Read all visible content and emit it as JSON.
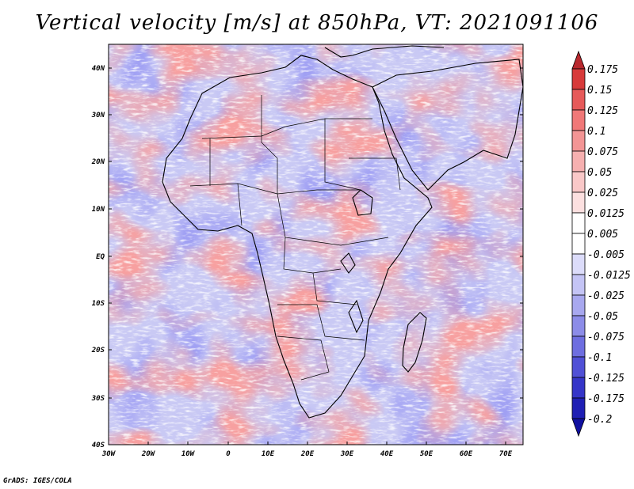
{
  "title": "Vertical velocity [m/s] at 850hPa, VT: 2021091106",
  "footer": "GrADS: IGES/COLA",
  "lat_labels": [
    "40N",
    "30N",
    "20N",
    "10N",
    "EQ",
    "10S",
    "20S",
    "30S",
    "40S"
  ],
  "lon_labels": [
    "30W",
    "20W",
    "10W",
    "0",
    "10E",
    "20E",
    "30E",
    "40E",
    "50E",
    "60E",
    "70E"
  ],
  "colorbar": {
    "labels": [
      "0.175",
      "0.15",
      "0.125",
      "0.1",
      "0.075",
      "0.05",
      "0.025",
      "0.0125",
      "0.005",
      "-0.005",
      "-0.0125",
      "-0.025",
      "-0.05",
      "-0.075",
      "-0.1",
      "-0.125",
      "-0.175",
      "-0.2"
    ],
    "colors": [
      "#b8282e",
      "#d73a3a",
      "#e65a5a",
      "#f07878",
      "#f39595",
      "#f6b0b0",
      "#f9c8c8",
      "#fce0e0",
      "#ffffff",
      "#ffffff",
      "#dcdcfa",
      "#c4c4f5",
      "#a8a8ef",
      "#8c8ce8",
      "#6e6ee0",
      "#5050d6",
      "#3535c8",
      "#1f1fb4",
      "#1010a0"
    ]
  }
}
